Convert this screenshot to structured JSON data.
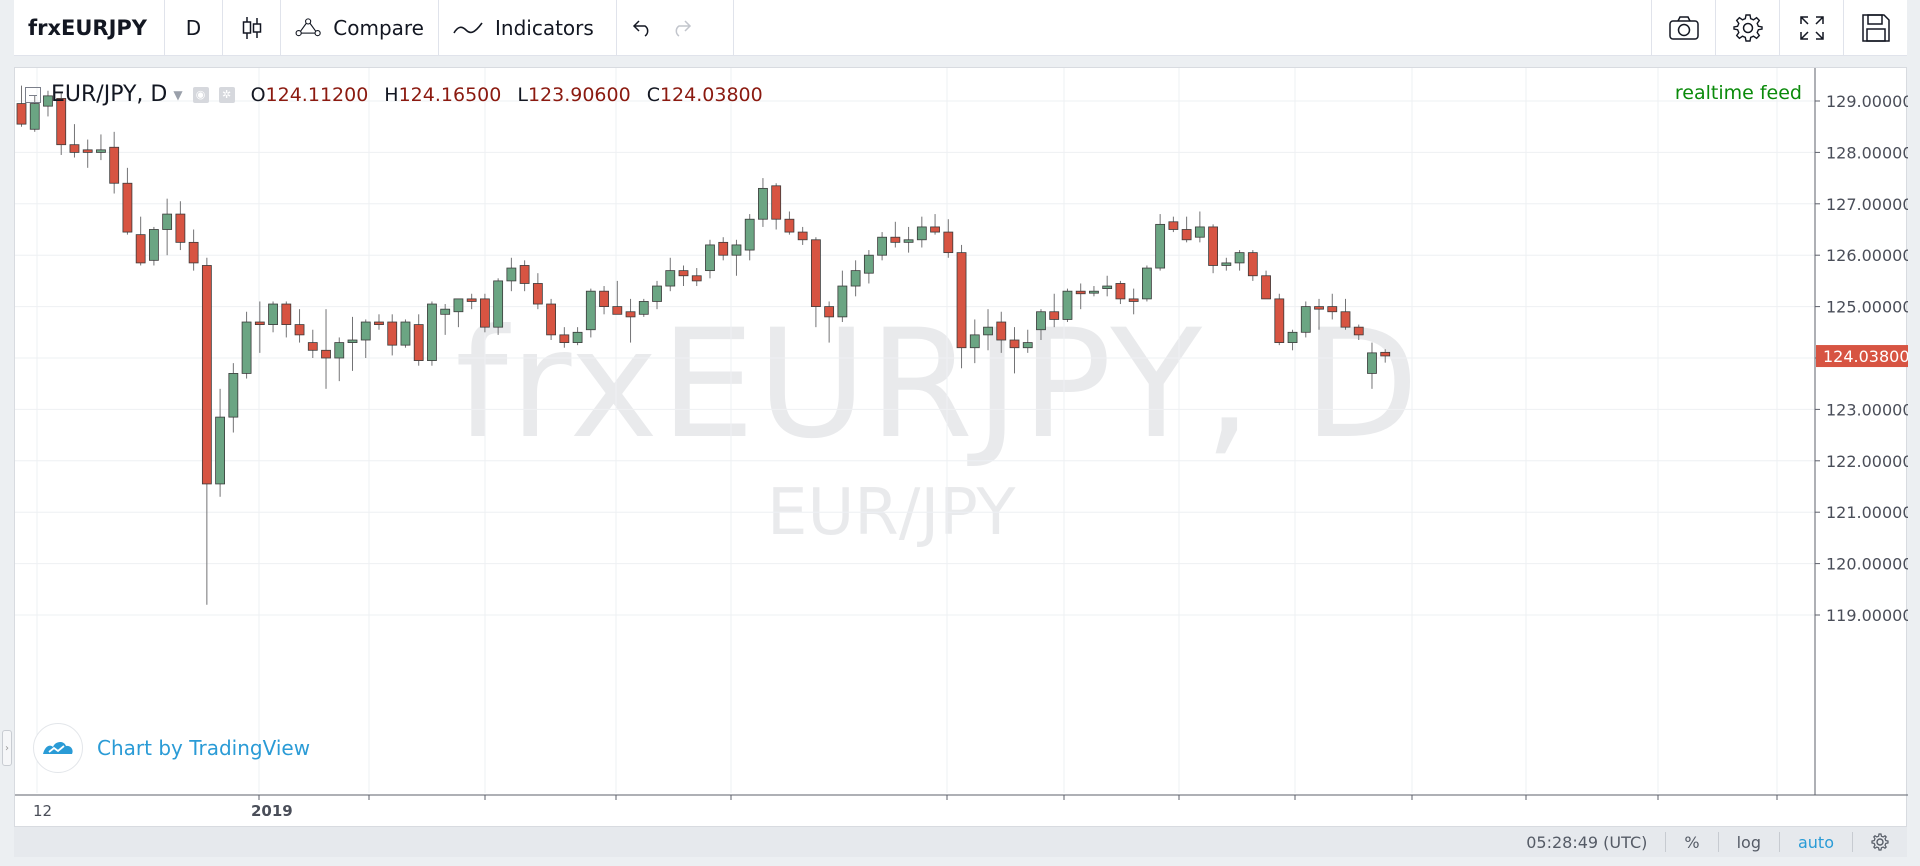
{
  "toolbar": {
    "symbol": "frxEURJPY",
    "interval": "D",
    "compare_label": "Compare",
    "indicators_label": "Indicators"
  },
  "legend": {
    "symbol_title": "EUR/JPY, D",
    "open_label": "O",
    "open_value": "124.11200",
    "high_label": "H",
    "high_value": "124.16500",
    "low_label": "L",
    "low_value": "123.90600",
    "close_label": "C",
    "close_value": "124.03800"
  },
  "status": {
    "realtime": "realtime feed"
  },
  "watermark": {
    "main": "frxEURJPY, D",
    "sub": "EUR/JPY"
  },
  "branding": {
    "text": "Chart by TradingView"
  },
  "bottom_bar": {
    "time": "05:28:49 (UTC)",
    "percent": "%",
    "log": "log",
    "auto": "auto"
  },
  "colors": {
    "up": "#6ba583",
    "down": "#d75442",
    "price_tag": "#d75442",
    "brand": "#2a9bd6",
    "realtime": "#0a8a0a"
  },
  "icons": [
    "candles-icon",
    "compare-icon",
    "indicators-icon",
    "undo-icon",
    "redo-icon",
    "camera-icon",
    "gear-icon",
    "fullscreen-icon",
    "save-icon",
    "tradingview-logo-icon",
    "settings-icon"
  ],
  "chart_data": {
    "type": "candlestick",
    "y_ticks": [
      "129.00000",
      "128.00000",
      "127.00000",
      "126.00000",
      "125.00000",
      "124.00000",
      "123.00000",
      "122.00000",
      "121.00000",
      "120.00000",
      "119.00000"
    ],
    "x_ticks": [
      {
        "label": "12",
        "bold": false
      },
      {
        "label": "2019",
        "bold": true
      }
    ],
    "last_price": "124.03800",
    "ylim": [
      118.3,
      129.85
    ],
    "candles": [
      [
        128.95,
        129.3,
        128.5,
        128.55
      ],
      [
        128.45,
        129.1,
        128.4,
        128.95
      ],
      [
        128.9,
        129.2,
        128.7,
        129.1
      ],
      [
        129.05,
        129.15,
        127.95,
        128.15
      ],
      [
        128.15,
        128.55,
        127.9,
        128.0
      ],
      [
        128.05,
        128.25,
        127.7,
        128.0
      ],
      [
        128.0,
        128.35,
        127.85,
        128.05
      ],
      [
        128.1,
        128.4,
        127.2,
        127.4
      ],
      [
        127.4,
        127.7,
        126.4,
        126.45
      ],
      [
        126.4,
        126.75,
        125.8,
        125.85
      ],
      [
        125.9,
        126.55,
        125.8,
        126.5
      ],
      [
        126.5,
        127.1,
        126.0,
        126.8
      ],
      [
        126.8,
        127.05,
        126.1,
        126.25
      ],
      [
        126.25,
        126.5,
        125.7,
        125.85
      ],
      [
        125.8,
        125.95,
        119.2,
        121.55
      ],
      [
        121.55,
        123.4,
        121.3,
        122.85
      ],
      [
        122.85,
        123.9,
        122.55,
        123.7
      ],
      [
        123.7,
        124.9,
        123.6,
        124.7
      ],
      [
        124.7,
        125.1,
        124.1,
        124.65
      ],
      [
        124.65,
        125.1,
        124.5,
        125.05
      ],
      [
        125.05,
        125.1,
        124.4,
        124.65
      ],
      [
        124.65,
        124.95,
        124.3,
        124.45
      ],
      [
        124.3,
        124.55,
        124.0,
        124.15
      ],
      [
        124.15,
        124.95,
        123.4,
        124.0
      ],
      [
        124.0,
        124.4,
        123.55,
        124.3
      ],
      [
        124.3,
        124.8,
        123.75,
        124.35
      ],
      [
        124.35,
        124.75,
        124.0,
        124.7
      ],
      [
        124.7,
        124.85,
        124.55,
        124.65
      ],
      [
        124.7,
        124.85,
        124.05,
        124.25
      ],
      [
        124.25,
        124.75,
        124.2,
        124.7
      ],
      [
        124.65,
        124.85,
        123.85,
        123.95
      ],
      [
        123.95,
        125.1,
        123.85,
        125.05
      ],
      [
        124.85,
        125.05,
        124.45,
        124.95
      ],
      [
        124.9,
        125.15,
        124.6,
        125.15
      ],
      [
        125.15,
        125.25,
        124.95,
        125.1
      ],
      [
        125.15,
        125.25,
        124.5,
        124.6
      ],
      [
        124.6,
        125.55,
        124.45,
        125.5
      ],
      [
        125.5,
        125.95,
        125.3,
        125.75
      ],
      [
        125.8,
        125.9,
        125.3,
        125.45
      ],
      [
        125.45,
        125.65,
        124.95,
        125.05
      ],
      [
        125.05,
        125.15,
        124.35,
        124.45
      ],
      [
        124.45,
        124.6,
        124.2,
        124.3
      ],
      [
        124.3,
        124.6,
        124.25,
        124.5
      ],
      [
        124.55,
        125.35,
        124.4,
        125.3
      ],
      [
        125.3,
        125.4,
        124.85,
        125.0
      ],
      [
        125.0,
        125.5,
        124.85,
        124.85
      ],
      [
        124.9,
        125.15,
        124.3,
        124.8
      ],
      [
        124.85,
        125.15,
        124.8,
        125.1
      ],
      [
        125.1,
        125.5,
        124.95,
        125.4
      ],
      [
        125.4,
        125.95,
        125.3,
        125.7
      ],
      [
        125.7,
        125.8,
        125.4,
        125.6
      ],
      [
        125.6,
        125.75,
        125.4,
        125.5
      ],
      [
        125.7,
        126.3,
        125.55,
        126.2
      ],
      [
        126.25,
        126.35,
        125.9,
        126.0
      ],
      [
        126.0,
        126.3,
        125.6,
        126.2
      ],
      [
        126.1,
        126.8,
        125.9,
        126.7
      ],
      [
        126.7,
        127.5,
        126.55,
        127.3
      ],
      [
        127.35,
        127.4,
        126.5,
        126.7
      ],
      [
        126.7,
        126.85,
        126.4,
        126.45
      ],
      [
        126.45,
        126.55,
        126.2,
        126.3
      ],
      [
        126.3,
        126.35,
        124.6,
        125.0
      ],
      [
        125.0,
        125.1,
        124.3,
        124.8
      ],
      [
        124.8,
        125.7,
        124.7,
        125.4
      ],
      [
        125.4,
        125.9,
        125.2,
        125.7
      ],
      [
        125.65,
        126.1,
        125.45,
        126.0
      ],
      [
        126.0,
        126.45,
        125.9,
        126.35
      ],
      [
        126.35,
        126.65,
        126.15,
        126.25
      ],
      [
        126.25,
        126.55,
        126.05,
        126.3
      ],
      [
        126.3,
        126.75,
        126.15,
        126.55
      ],
      [
        126.55,
        126.8,
        126.4,
        126.45
      ],
      [
        126.45,
        126.7,
        125.95,
        126.05
      ],
      [
        126.05,
        126.2,
        123.8,
        124.2
      ],
      [
        124.2,
        124.75,
        123.9,
        124.45
      ],
      [
        124.45,
        124.95,
        124.15,
        124.6
      ],
      [
        124.7,
        124.9,
        124.1,
        124.35
      ],
      [
        124.35,
        124.6,
        123.7,
        124.2
      ],
      [
        124.2,
        124.55,
        124.1,
        124.3
      ],
      [
        124.55,
        124.95,
        124.35,
        124.9
      ],
      [
        124.9,
        125.25,
        124.6,
        124.75
      ],
      [
        124.75,
        125.35,
        124.7,
        125.3
      ],
      [
        125.3,
        125.45,
        124.95,
        125.25
      ],
      [
        125.3,
        125.4,
        125.2,
        125.3
      ],
      [
        125.35,
        125.6,
        125.2,
        125.4
      ],
      [
        125.45,
        125.5,
        125.05,
        125.15
      ],
      [
        125.15,
        125.35,
        124.85,
        125.1
      ],
      [
        125.15,
        125.8,
        125.1,
        125.75
      ],
      [
        125.75,
        126.8,
        125.7,
        126.6
      ],
      [
        126.65,
        126.75,
        126.45,
        126.5
      ],
      [
        126.5,
        126.75,
        126.25,
        126.3
      ],
      [
        126.35,
        126.85,
        126.25,
        126.55
      ],
      [
        126.55,
        126.6,
        125.65,
        125.8
      ],
      [
        125.8,
        125.95,
        125.7,
        125.85
      ],
      [
        125.85,
        126.1,
        125.7,
        126.05
      ],
      [
        126.05,
        126.1,
        125.5,
        125.6
      ],
      [
        125.6,
        125.7,
        125.15,
        125.15
      ],
      [
        125.15,
        125.25,
        124.25,
        124.3
      ],
      [
        124.3,
        124.55,
        124.15,
        124.5
      ],
      [
        124.5,
        125.1,
        124.4,
        125.0
      ],
      [
        125.0,
        125.15,
        124.55,
        124.95
      ],
      [
        125.0,
        125.25,
        124.75,
        124.9
      ],
      [
        124.9,
        125.15,
        124.55,
        124.6
      ],
      [
        124.6,
        124.65,
        124.35,
        124.45
      ],
      [
        123.7,
        124.3,
        123.4,
        124.1
      ],
      [
        124.11,
        124.17,
        123.91,
        124.04
      ]
    ]
  }
}
